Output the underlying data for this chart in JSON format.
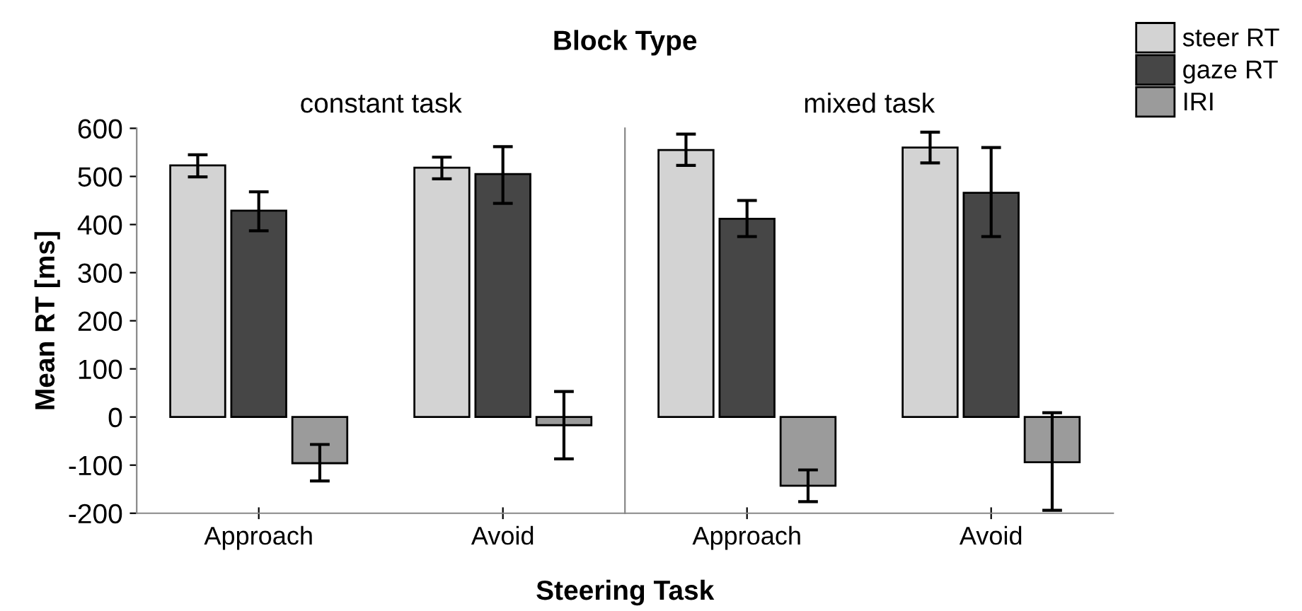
{
  "chart_data": [
    {
      "type": "bar",
      "title": "Block Type",
      "subtitle": "constant task",
      "xlabel": "Steering Task",
      "ylabel": "Mean RT [ms]",
      "categories": [
        "Approach",
        "Avoid"
      ],
      "ylim": [
        -200,
        600
      ],
      "yticks": [
        -200,
        -100,
        0,
        100,
        200,
        300,
        400,
        500,
        600
      ],
      "grid": false,
      "legend": "top right",
      "series": [
        {
          "name": "steer RT",
          "color": "#d3d3d3",
          "values": [
            523,
            518
          ],
          "errors": [
            [
              499,
              545
            ],
            [
              495,
              540
            ]
          ]
        },
        {
          "name": "gaze RT",
          "color": "#464646",
          "values": [
            429,
            505
          ],
          "errors": [
            [
              387,
              468
            ],
            [
              444,
              562
            ]
          ]
        },
        {
          "name": "IRI",
          "color": "#9b9b9b",
          "values": [
            -96,
            -17
          ],
          "errors": [
            [
              -133,
              -57
            ],
            [
              -87,
              53
            ]
          ]
        }
      ]
    },
    {
      "type": "bar",
      "subtitle": "mixed task",
      "categories": [
        "Approach",
        "Avoid"
      ],
      "ylim": [
        -200,
        600
      ],
      "tick_labels": "x",
      "grid": false,
      "series": [
        {
          "color": "#d3d3d3",
          "values": [
            555,
            560
          ],
          "errors": [
            [
              523,
              588
            ],
            [
              528,
              592
            ]
          ]
        },
        {
          "color": "#464646",
          "values": [
            412,
            466
          ],
          "errors": [
            [
              375,
              450
            ],
            [
              375,
              560
            ]
          ]
        },
        {
          "color": "#9b9b9b",
          "values": [
            -143,
            -94
          ],
          "errors": [
            [
              -176,
              -110
            ],
            [
              -194,
              9
            ]
          ]
        }
      ]
    }
  ]
}
